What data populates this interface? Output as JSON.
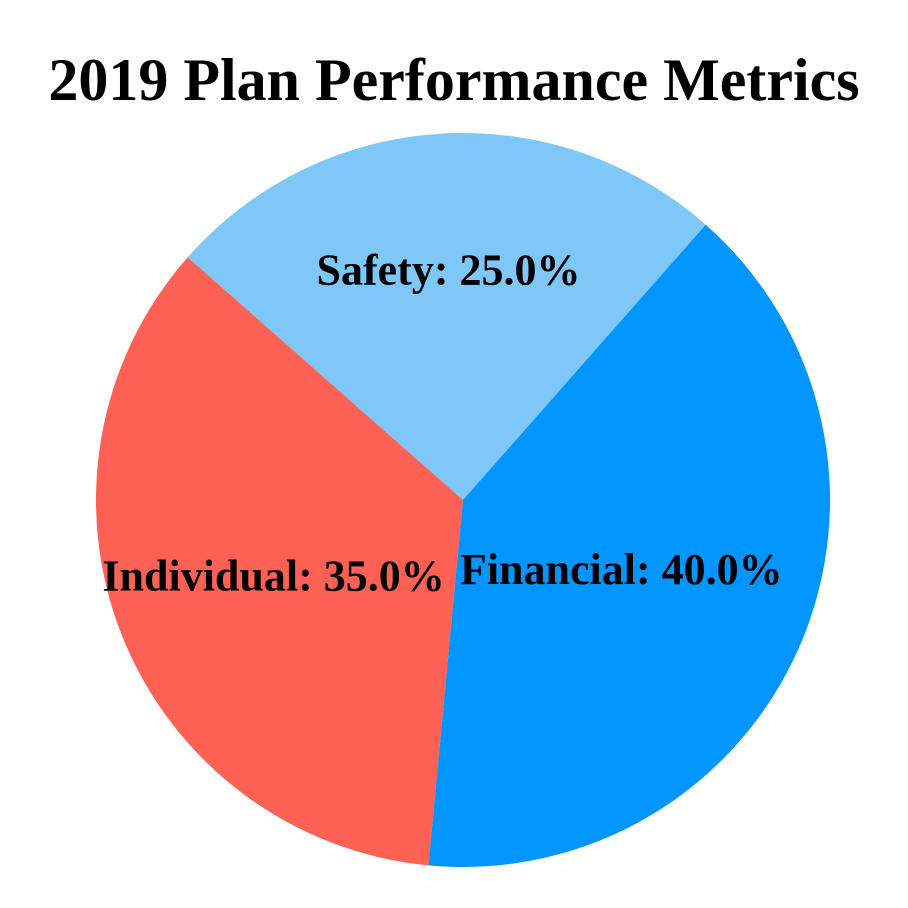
{
  "chart_data": {
    "type": "pie",
    "title": "2019 Plan Performance Metrics",
    "segments": [
      {
        "label": "Safety",
        "value": 25.0,
        "display": "Safety: 25.0%",
        "color": "#7EC8F9",
        "label_distance": 0.63
      },
      {
        "label": "Individual",
        "value": 35.0,
        "display": "Individual: 35.0%",
        "color": "#FF6155",
        "label_distance": 0.555
      },
      {
        "label": "Financial",
        "value": 40.0,
        "display": "Financial: 40.0%",
        "color": "#0095FF",
        "label_distance": 0.47
      }
    ],
    "start_angle_deg": 48.6,
    "direction": "counterclockwise",
    "legend": "none",
    "labels_position": "inside",
    "label_color": "#000000",
    "background": "#FFFFFF"
  }
}
